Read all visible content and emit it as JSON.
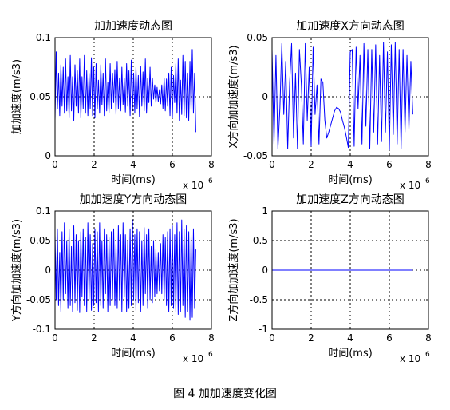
{
  "figure_caption": "图 4  加加速度变化图",
  "chart_data": [
    {
      "type": "line",
      "title": "加加速度动态图",
      "xlabel": "时间(ms)",
      "ylabel": "加加速度(m/s3)",
      "x_multiplier_label": "x 10",
      "x_multiplier_exp": "6",
      "xlim": [
        0,
        8
      ],
      "ylim": [
        0,
        0.1
      ],
      "xticks": [
        "0",
        "2",
        "4",
        "6",
        "8"
      ],
      "yticks": [
        "0",
        "0.05",
        "0.1"
      ],
      "grid": true,
      "series": [
        {
          "color": "#0000ff",
          "x": [
            0.0,
            0.06,
            0.12,
            0.18,
            0.24,
            0.3,
            0.36,
            0.42,
            0.48,
            0.54,
            0.6,
            0.66,
            0.72,
            0.78,
            0.84,
            0.9,
            0.96,
            1.02,
            1.08,
            1.14,
            1.2,
            1.26,
            1.32,
            1.38,
            1.44,
            1.5,
            1.56,
            1.62,
            1.68,
            1.74,
            1.8,
            1.86,
            1.92,
            1.98,
            2.04,
            2.1,
            2.16,
            2.22,
            2.28,
            2.34,
            2.4,
            2.46,
            2.52,
            2.58,
            2.64,
            2.7,
            2.76,
            2.82,
            2.88,
            2.94,
            3.0,
            3.06,
            3.12,
            3.18,
            3.24,
            3.3,
            3.36,
            3.42,
            3.48,
            3.54,
            3.6,
            3.66,
            3.72,
            3.78,
            3.84,
            3.9,
            3.96,
            4.02,
            4.08,
            4.14,
            4.2,
            4.26,
            4.32,
            4.38,
            4.44,
            4.5,
            4.56,
            4.62,
            4.68,
            4.74,
            4.8,
            4.86,
            4.92,
            4.98,
            5.04,
            5.1,
            5.16,
            5.22,
            5.28,
            5.34,
            5.4,
            5.46,
            5.52,
            5.58,
            5.64,
            5.7,
            5.76,
            5.82,
            5.88,
            5.94,
            6.0,
            6.06,
            6.12,
            6.18,
            6.24,
            6.3,
            6.36,
            6.42,
            6.48,
            6.54,
            6.6,
            6.66,
            6.72,
            6.78,
            6.84,
            6.9,
            6.96,
            7.02,
            7.08,
            7.14,
            7.2
          ],
          "y": [
            0.03,
            0.088,
            0.04,
            0.07,
            0.034,
            0.077,
            0.042,
            0.075,
            0.036,
            0.082,
            0.038,
            0.067,
            0.032,
            0.085,
            0.038,
            0.067,
            0.03,
            0.077,
            0.042,
            0.072,
            0.036,
            0.082,
            0.032,
            0.067,
            0.04,
            0.085,
            0.036,
            0.072,
            0.034,
            0.07,
            0.04,
            0.083,
            0.034,
            0.075,
            0.032,
            0.078,
            0.04,
            0.064,
            0.036,
            0.077,
            0.043,
            0.07,
            0.034,
            0.082,
            0.038,
            0.062,
            0.036,
            0.078,
            0.04,
            0.07,
            0.045,
            0.073,
            0.035,
            0.08,
            0.04,
            0.066,
            0.038,
            0.075,
            0.043,
            0.066,
            0.037,
            0.078,
            0.042,
            0.072,
            0.034,
            0.081,
            0.038,
            0.07,
            0.036,
            0.075,
            0.04,
            0.068,
            0.033,
            0.076,
            0.042,
            0.071,
            0.038,
            0.082,
            0.036,
            0.066,
            0.045,
            0.075,
            0.042,
            0.066,
            0.048,
            0.06,
            0.045,
            0.058,
            0.046,
            0.056,
            0.044,
            0.06,
            0.04,
            0.066,
            0.038,
            0.065,
            0.042,
            0.07,
            0.034,
            0.075,
            0.032,
            0.068,
            0.045,
            0.078,
            0.036,
            0.082,
            0.03,
            0.064,
            0.035,
            0.085,
            0.034,
            0.08,
            0.032,
            0.07,
            0.03,
            0.08,
            0.038,
            0.09,
            0.036,
            0.07,
            0.02
          ]
        }
      ]
    },
    {
      "type": "line",
      "title": "加加速度X方向动态图",
      "xlabel": "时间(ms)",
      "ylabel": "X方向加加速度(m/s3)",
      "x_multiplier_label": "x 10",
      "x_multiplier_exp": "6",
      "xlim": [
        0,
        8
      ],
      "ylim": [
        -0.05,
        0.05
      ],
      "xticks": [
        "0",
        "2",
        "4",
        "6",
        "8"
      ],
      "yticks": [
        "-0.05",
        "0",
        "0.05"
      ],
      "grid": true,
      "series": [
        {
          "color": "#0000ff",
          "x": [
            0.0,
            0.1,
            0.2,
            0.3,
            0.4,
            0.5,
            0.6,
            0.7,
            0.8,
            0.9,
            1.0,
            1.1,
            1.2,
            1.3,
            1.4,
            1.5,
            1.6,
            1.7,
            1.8,
            1.9,
            2.0,
            2.1,
            2.2,
            2.3,
            2.4,
            2.5,
            2.6,
            2.7,
            2.8,
            2.9,
            3.0,
            3.1,
            3.2,
            3.3,
            3.4,
            3.5,
            3.6,
            3.7,
            3.8,
            3.9,
            4.0,
            4.1,
            4.2,
            4.3,
            4.4,
            4.5,
            4.6,
            4.7,
            4.8,
            4.9,
            5.0,
            5.1,
            5.2,
            5.3,
            5.4,
            5.5,
            5.6,
            5.7,
            5.8,
            5.9,
            6.0,
            6.1,
            6.2,
            6.3,
            6.4,
            6.5,
            6.6,
            6.7,
            6.8,
            6.9,
            7.0,
            7.1,
            7.2
          ],
          "y": [
            0.04,
            -0.04,
            0.035,
            -0.044,
            -0.01,
            0.045,
            -0.015,
            0.03,
            -0.044,
            0.012,
            0.045,
            -0.035,
            0.02,
            -0.044,
            0.04,
            0.01,
            -0.04,
            0.045,
            -0.02,
            0.025,
            -0.042,
            0.042,
            -0.015,
            0.01,
            -0.04,
            0.015,
            0.012,
            -0.02,
            -0.035,
            -0.03,
            -0.024,
            -0.018,
            -0.012,
            -0.009,
            -0.01,
            -0.013,
            -0.02,
            -0.026,
            -0.034,
            -0.043,
            0.038,
            0.04,
            -0.042,
            0.042,
            -0.01,
            0.035,
            -0.04,
            0.045,
            -0.025,
            0.04,
            -0.044,
            0.04,
            -0.03,
            0.044,
            -0.04,
            0.035,
            -0.038,
            0.046,
            -0.03,
            0.038,
            -0.045,
            0.044,
            -0.032,
            0.046,
            -0.04,
            0.04,
            -0.044,
            0.04,
            -0.03,
            0.035,
            -0.028,
            0.03,
            -0.015
          ]
        }
      ]
    },
    {
      "type": "line",
      "title": "加加速度Y方向动态图",
      "xlabel": "时间(ms)",
      "ylabel": "Y方向加加速度(m/s3)",
      "x_multiplier_label": "x 10",
      "x_multiplier_exp": "6",
      "xlim": [
        0,
        8
      ],
      "ylim": [
        -0.1,
        0.1
      ],
      "xticks": [
        "0",
        "2",
        "4",
        "6",
        "8"
      ],
      "yticks": [
        "-0.1",
        "-0.05",
        "0",
        "0.05",
        "0.1"
      ],
      "grid": true,
      "series": [
        {
          "color": "#0000ff",
          "x": [
            0.0,
            0.06,
            0.12,
            0.18,
            0.24,
            0.3,
            0.36,
            0.42,
            0.48,
            0.54,
            0.6,
            0.66,
            0.72,
            0.78,
            0.84,
            0.9,
            0.96,
            1.02,
            1.08,
            1.14,
            1.2,
            1.26,
            1.32,
            1.38,
            1.44,
            1.5,
            1.56,
            1.62,
            1.68,
            1.74,
            1.8,
            1.86,
            1.92,
            1.98,
            2.04,
            2.1,
            2.16,
            2.22,
            2.28,
            2.34,
            2.4,
            2.46,
            2.52,
            2.58,
            2.64,
            2.7,
            2.76,
            2.82,
            2.88,
            2.94,
            3.0,
            3.06,
            3.12,
            3.18,
            3.24,
            3.3,
            3.36,
            3.42,
            3.48,
            3.54,
            3.6,
            3.66,
            3.72,
            3.78,
            3.84,
            3.9,
            3.96,
            4.02,
            4.08,
            4.14,
            4.2,
            4.26,
            4.32,
            4.38,
            4.44,
            4.5,
            4.56,
            4.62,
            4.68,
            4.74,
            4.8,
            4.86,
            4.92,
            4.98,
            5.04,
            5.1,
            5.16,
            5.22,
            5.28,
            5.34,
            5.4,
            5.46,
            5.52,
            5.58,
            5.64,
            5.7,
            5.76,
            5.82,
            5.88,
            5.94,
            6.0,
            6.06,
            6.12,
            6.18,
            6.24,
            6.3,
            6.36,
            6.42,
            6.48,
            6.54,
            6.6,
            6.66,
            6.72,
            6.78,
            6.84,
            6.9,
            6.96,
            7.02,
            7.08,
            7.14,
            7.2
          ],
          "y": [
            0.06,
            -0.05,
            0.07,
            -0.06,
            0.03,
            -0.07,
            0.065,
            -0.05,
            0.08,
            -0.04,
            0.05,
            -0.065,
            0.07,
            -0.06,
            0.04,
            -0.07,
            0.075,
            -0.055,
            0.06,
            -0.068,
            0.05,
            -0.072,
            0.065,
            -0.045,
            0.07,
            -0.06,
            0.055,
            -0.07,
            0.08,
            -0.05,
            0.06,
            -0.068,
            0.045,
            -0.06,
            0.07,
            -0.055,
            0.065,
            -0.07,
            0.08,
            -0.06,
            0.05,
            -0.065,
            0.07,
            -0.04,
            0.06,
            -0.07,
            0.055,
            -0.06,
            0.065,
            -0.05,
            0.07,
            -0.06,
            0.045,
            -0.065,
            0.075,
            -0.05,
            0.06,
            -0.07,
            0.08,
            -0.045,
            0.06,
            -0.07,
            0.05,
            -0.065,
            0.07,
            -0.06,
            0.085,
            -0.05,
            0.06,
            -0.068,
            0.07,
            -0.055,
            0.065,
            -0.07,
            0.05,
            -0.06,
            0.072,
            -0.04,
            0.06,
            -0.065,
            0.07,
            -0.05,
            0.04,
            -0.055,
            0.05,
            -0.045,
            0.035,
            -0.04,
            0.03,
            -0.035,
            0.045,
            -0.04,
            0.06,
            -0.05,
            0.055,
            -0.06,
            0.065,
            -0.07,
            0.07,
            -0.06,
            0.075,
            -0.065,
            0.06,
            -0.07,
            0.08,
            -0.075,
            0.065,
            -0.07,
            0.085,
            -0.06,
            0.07,
            -0.08,
            0.075,
            -0.07,
            0.065,
            -0.085,
            0.06,
            -0.08,
            0.07,
            -0.065,
            0.035
          ]
        }
      ]
    },
    {
      "type": "line",
      "title": "加加速度Z方向动态图",
      "xlabel": "时间(ms)",
      "ylabel": "Z方向加加速度(m/s3)",
      "x_multiplier_label": "x 10",
      "x_multiplier_exp": "6",
      "xlim": [
        0,
        8
      ],
      "ylim": [
        -1,
        1
      ],
      "xticks": [
        "0",
        "2",
        "4",
        "6",
        "8"
      ],
      "yticks": [
        "-1",
        "-0.5",
        "0",
        "0.5",
        "1"
      ],
      "grid": true,
      "series": [
        {
          "color": "#0000ff",
          "x": [
            0,
            7.2
          ],
          "y": [
            0,
            0
          ]
        }
      ]
    }
  ]
}
